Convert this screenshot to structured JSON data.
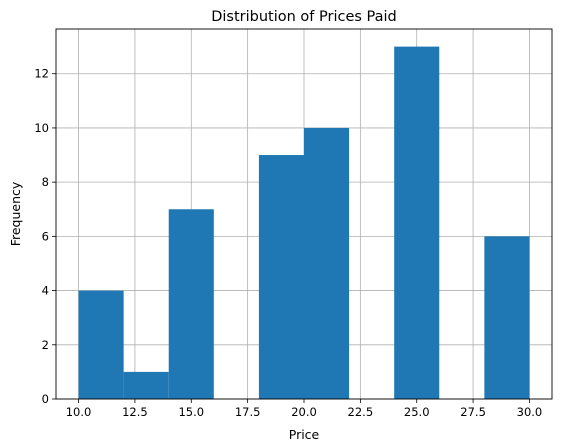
{
  "chart_data": {
    "type": "bar",
    "title": "Distribution of Prices Paid",
    "xlabel": "Price",
    "ylabel": "Frequency",
    "xlim": [
      9.0,
      31.0
    ],
    "ylim": [
      0,
      13.65
    ],
    "grid": true,
    "bar_color": "#1f77b4",
    "x_ticks": [
      {
        "value": 10.0,
        "label": "10.0"
      },
      {
        "value": 12.5,
        "label": "12.5"
      },
      {
        "value": 15.0,
        "label": "15.0"
      },
      {
        "value": 17.5,
        "label": "17.5"
      },
      {
        "value": 20.0,
        "label": "20.0"
      },
      {
        "value": 22.5,
        "label": "22.5"
      },
      {
        "value": 25.0,
        "label": "25.0"
      },
      {
        "value": 27.5,
        "label": "27.5"
      },
      {
        "value": 30.0,
        "label": "30.0"
      }
    ],
    "y_ticks": [
      {
        "value": 0,
        "label": "0"
      },
      {
        "value": 2,
        "label": "2"
      },
      {
        "value": 4,
        "label": "4"
      },
      {
        "value": 6,
        "label": "6"
      },
      {
        "value": 8,
        "label": "8"
      },
      {
        "value": 10,
        "label": "10"
      },
      {
        "value": 12,
        "label": "12"
      }
    ],
    "bins": [
      {
        "x0": 10,
        "x1": 12,
        "count": 4
      },
      {
        "x0": 12,
        "x1": 14,
        "count": 1
      },
      {
        "x0": 14,
        "x1": 16,
        "count": 7
      },
      {
        "x0": 16,
        "x1": 18,
        "count": 0
      },
      {
        "x0": 18,
        "x1": 20,
        "count": 9
      },
      {
        "x0": 20,
        "x1": 22,
        "count": 10
      },
      {
        "x0": 22,
        "x1": 24,
        "count": 0
      },
      {
        "x0": 24,
        "x1": 26,
        "count": 13
      },
      {
        "x0": 26,
        "x1": 28,
        "count": 0
      },
      {
        "x0": 28,
        "x1": 30,
        "count": 6
      }
    ]
  }
}
